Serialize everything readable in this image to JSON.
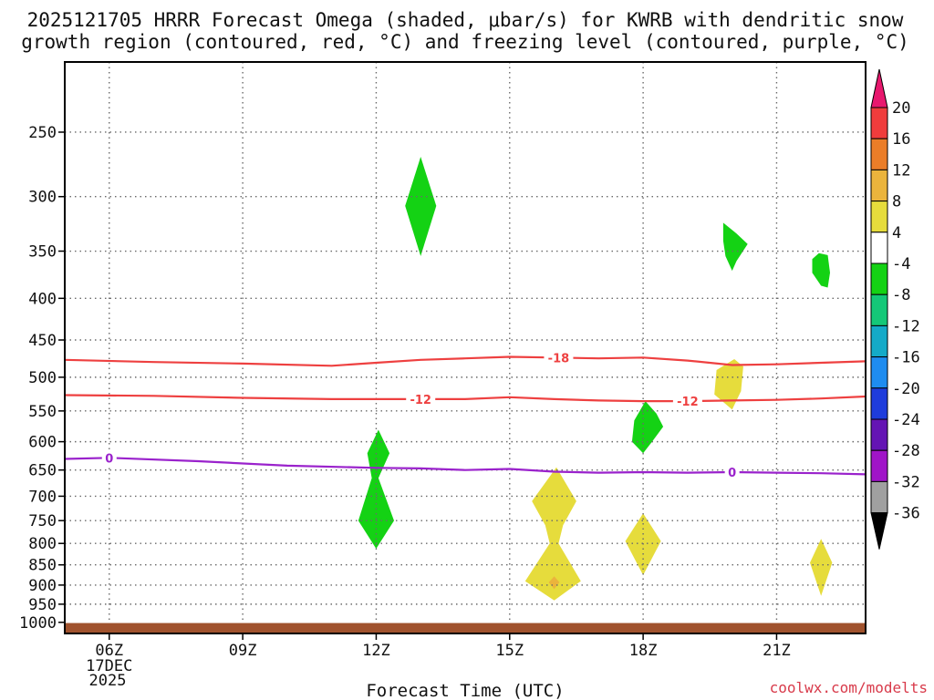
{
  "chart_data": {
    "type": "time-height cross-section",
    "title_line1": "2025121705 HRRR Forecast Omega (shaded, μbar/s) for KWRB with dendritic snow",
    "title_line2": "growth region (contoured, red, °C) and freezing level (contoured, purple, °C)",
    "xlabel": "Forecast Time (UTC)",
    "x_ticks": [
      {
        "hour": 6,
        "label": "06Z"
      },
      {
        "hour": 9,
        "label": "09Z"
      },
      {
        "hour": 12,
        "label": "12Z"
      },
      {
        "hour": 15,
        "label": "15Z"
      },
      {
        "hour": 18,
        "label": "18Z"
      },
      {
        "hour": 21,
        "label": "21Z"
      }
    ],
    "date_label": "17DEC",
    "year_label": "2025",
    "xlim_hours": [
      5.0,
      23.0
    ],
    "y_ticks": [
      250,
      300,
      350,
      400,
      450,
      500,
      550,
      600,
      650,
      700,
      750,
      800,
      850,
      900,
      950,
      1000
    ],
    "ylim_hPa": [
      205,
      1032
    ],
    "surface_pressure_hPa": 1002,
    "colorbar": {
      "labels": [
        "20",
        "16",
        "12",
        "8",
        "4",
        "-4",
        "-8",
        "-12",
        "-16",
        "-20",
        "-24",
        "-28",
        "-32",
        "-36"
      ],
      "colors": [
        "#e8186e",
        "#f03c3c",
        "#eb7d28",
        "#ebb43c",
        "#e6dc3c",
        "#ffffff",
        "#14d214",
        "#14c878",
        "#14aac8",
        "#1e8cf0",
        "#1e3cdc",
        "#6414b4",
        "#a014c8",
        "#a0a0a0",
        "#000000"
      ]
    },
    "contours": [
      {
        "name": "temperature -18",
        "label": "-18",
        "color": "#ee4040",
        "points": [
          [
            5,
            476
          ],
          [
            7,
            479
          ],
          [
            9,
            481
          ],
          [
            11,
            484
          ],
          [
            12,
            480
          ],
          [
            13,
            476
          ],
          [
            14,
            474
          ],
          [
            15,
            472
          ],
          [
            16,
            473
          ],
          [
            17,
            474
          ],
          [
            18,
            473
          ],
          [
            19,
            477
          ],
          [
            20,
            483
          ],
          [
            21,
            482
          ],
          [
            22,
            480
          ],
          [
            23,
            478
          ]
        ],
        "label_hours": [
          16.1
        ]
      },
      {
        "name": "temperature -12",
        "label": "-12",
        "color": "#ee4040",
        "points": [
          [
            5,
            526
          ],
          [
            7,
            527
          ],
          [
            9,
            530
          ],
          [
            11,
            532
          ],
          [
            12,
            532
          ],
          [
            13,
            532
          ],
          [
            14,
            532
          ],
          [
            15,
            529
          ],
          [
            16,
            532
          ],
          [
            17,
            534
          ],
          [
            18,
            535
          ],
          [
            19,
            535
          ],
          [
            20,
            534
          ],
          [
            21,
            533
          ],
          [
            22,
            531
          ],
          [
            23,
            528
          ]
        ],
        "label_hours": [
          13.0,
          19.0
        ]
      },
      {
        "name": "freezing level 0",
        "label": "0",
        "color": "#9a22cc",
        "points": [
          [
            5,
            630
          ],
          [
            6,
            628
          ],
          [
            8,
            634
          ],
          [
            10,
            642
          ],
          [
            12,
            646
          ],
          [
            13,
            647
          ],
          [
            14,
            650
          ],
          [
            15,
            648
          ],
          [
            16,
            653
          ],
          [
            17,
            655
          ],
          [
            18,
            654
          ],
          [
            19,
            655
          ],
          [
            20,
            654
          ],
          [
            21,
            655
          ],
          [
            22,
            656
          ],
          [
            23,
            658
          ]
        ],
        "label_hours": [
          6.0,
          20.0
        ]
      }
    ],
    "omega_features": [
      {
        "value_class": "-8",
        "color": "#14d214",
        "points": [
          [
            13.0,
            268
          ],
          [
            13.35,
            308
          ],
          [
            13.0,
            355
          ],
          [
            12.65,
            308
          ]
        ]
      },
      {
        "value_class": "-8",
        "color": "#14d214",
        "points": [
          [
            19.8,
            323
          ],
          [
            20.1,
            333
          ],
          [
            20.35,
            343
          ],
          [
            20.1,
            360
          ],
          [
            20.0,
            370
          ],
          [
            19.85,
            355
          ],
          [
            19.8,
            340
          ]
        ]
      },
      {
        "value_class": "-8",
        "color": "#14d214",
        "points": [
          [
            21.95,
            352
          ],
          [
            22.15,
            354
          ],
          [
            22.2,
            372
          ],
          [
            22.15,
            388
          ],
          [
            22.0,
            386
          ],
          [
            21.8,
            372
          ],
          [
            21.8,
            358
          ]
        ]
      },
      {
        "value_class": "-8",
        "color": "#14d214",
        "points": [
          [
            18.05,
            535
          ],
          [
            18.3,
            554
          ],
          [
            18.45,
            575
          ],
          [
            18.2,
            600
          ],
          [
            18.0,
            620
          ],
          [
            17.75,
            600
          ],
          [
            17.8,
            565
          ]
        ]
      },
      {
        "value_class": "-8",
        "color": "#14d214",
        "points": [
          [
            12.05,
            580
          ],
          [
            12.3,
            620
          ],
          [
            12.05,
            665
          ],
          [
            12.4,
            750
          ],
          [
            12.0,
            812
          ],
          [
            11.6,
            750
          ],
          [
            11.9,
            665
          ],
          [
            11.8,
            620
          ]
        ]
      },
      {
        "value_class": "4",
        "color": "#e6dc3c",
        "points": [
          [
            20.05,
            475
          ],
          [
            20.25,
            485
          ],
          [
            20.2,
            520
          ],
          [
            20.0,
            548
          ],
          [
            19.6,
            525
          ],
          [
            19.65,
            490
          ]
        ]
      },
      {
        "value_class": "4",
        "color": "#e6dc3c",
        "points": [
          [
            16.05,
            645
          ],
          [
            16.5,
            710
          ],
          [
            16.2,
            760
          ],
          [
            16.1,
            800
          ],
          [
            16.6,
            890
          ],
          [
            16.0,
            940
          ],
          [
            15.35,
            890
          ],
          [
            15.9,
            800
          ],
          [
            15.8,
            760
          ],
          [
            15.5,
            710
          ]
        ]
      },
      {
        "value_class": "4",
        "color": "#e6dc3c",
        "points": [
          [
            18.0,
            735
          ],
          [
            18.4,
            795
          ],
          [
            18.0,
            875
          ],
          [
            17.6,
            795
          ]
        ]
      },
      {
        "value_class": "4",
        "color": "#e6dc3c",
        "points": [
          [
            22.0,
            790
          ],
          [
            22.25,
            845
          ],
          [
            22.0,
            928
          ],
          [
            21.75,
            845
          ]
        ]
      },
      {
        "value_class": "8",
        "color": "#ebb43c",
        "points": [
          [
            16.0,
            878
          ],
          [
            16.12,
            893
          ],
          [
            16.0,
            910
          ],
          [
            15.88,
            893
          ]
        ]
      }
    ]
  },
  "credit": "coolwx.com/modelts"
}
